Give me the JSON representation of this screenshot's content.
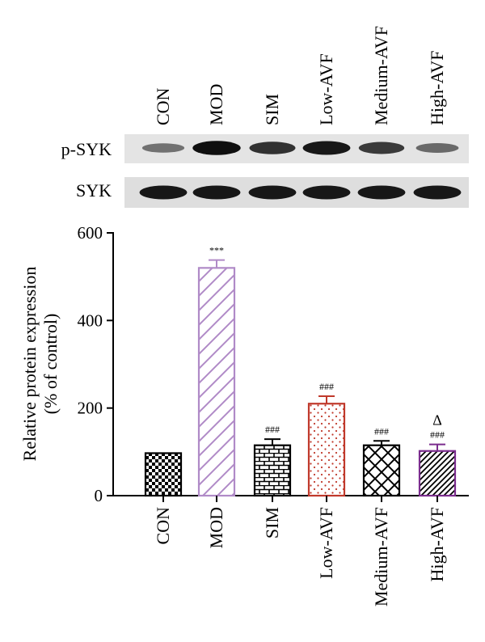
{
  "blot": {
    "lane_labels": [
      "CON",
      "MOD",
      "SIM",
      "Low-AVF",
      "Medium-AVF",
      "High-AVF"
    ],
    "rows": [
      {
        "label": "p-SYK",
        "band_intensity": [
          0.35,
          0.95,
          0.75,
          0.9,
          0.7,
          0.4
        ]
      },
      {
        "label": "SYK",
        "band_intensity": [
          0.9,
          0.9,
          0.9,
          0.9,
          0.9,
          0.9
        ]
      }
    ]
  },
  "chart_data": {
    "type": "bar",
    "categories": [
      "CON",
      "MOD",
      "SIM",
      "Low-AVF",
      "Medium-AVF",
      "High-AVF"
    ],
    "values": [
      97,
      520,
      115,
      210,
      115,
      102
    ],
    "errors": [
      0,
      18,
      14,
      17,
      10,
      15
    ],
    "annotations": [
      "",
      "***",
      "###",
      "###",
      "###",
      "###"
    ],
    "extra_annotations": [
      "",
      "",
      "",
      "",
      "",
      "Δ"
    ],
    "bar_colors": [
      "#000000",
      "#b08ac7",
      "#000000",
      "#c0392b",
      "#000000",
      "#7b2d8e"
    ],
    "patterns": [
      "checker",
      "diagonal",
      "brick",
      "dots",
      "crosshatch",
      "diag-dense"
    ],
    "ylabel": "Relative protein expression",
    "ylabel2": "(% of control)",
    "ylim": [
      0,
      600
    ],
    "yticks": [
      0,
      200,
      400,
      600
    ]
  }
}
